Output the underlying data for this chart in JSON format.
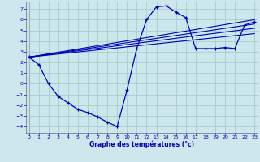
{
  "xlabel": "Graphe des températures (°c)",
  "bg_color": "#cce8ec",
  "grid_color": "#aacccc",
  "line_color": "#0000bb",
  "xlim": [
    -0.3,
    23.3
  ],
  "ylim": [
    -4.6,
    7.7
  ],
  "xticks": [
    0,
    1,
    2,
    3,
    4,
    5,
    6,
    7,
    8,
    9,
    10,
    11,
    12,
    13,
    14,
    15,
    16,
    17,
    18,
    19,
    20,
    21,
    22,
    23
  ],
  "yticks": [
    -4,
    -3,
    -2,
    -1,
    0,
    1,
    2,
    3,
    4,
    5,
    6,
    7
  ],
  "curve_x": [
    0,
    1,
    2,
    3,
    4,
    5,
    6,
    7,
    8,
    9,
    10,
    11,
    12,
    13,
    14,
    15,
    16,
    17,
    18,
    19,
    20,
    21,
    22,
    23
  ],
  "curve_y": [
    2.5,
    1.8,
    0.0,
    -1.2,
    -1.8,
    -2.4,
    -2.7,
    -3.1,
    -3.6,
    -4.0,
    -0.6,
    3.3,
    6.0,
    7.2,
    7.3,
    6.7,
    6.2,
    3.3,
    3.3,
    3.3,
    3.4,
    3.3,
    5.5,
    5.8
  ],
  "trend_lines": [
    {
      "x": [
        0,
        23
      ],
      "y": [
        2.5,
        6.0
      ]
    },
    {
      "x": [
        0,
        23
      ],
      "y": [
        2.5,
        5.6
      ]
    },
    {
      "x": [
        0,
        23
      ],
      "y": [
        2.5,
        5.2
      ]
    },
    {
      "x": [
        0,
        23
      ],
      "y": [
        2.5,
        4.7
      ]
    }
  ]
}
